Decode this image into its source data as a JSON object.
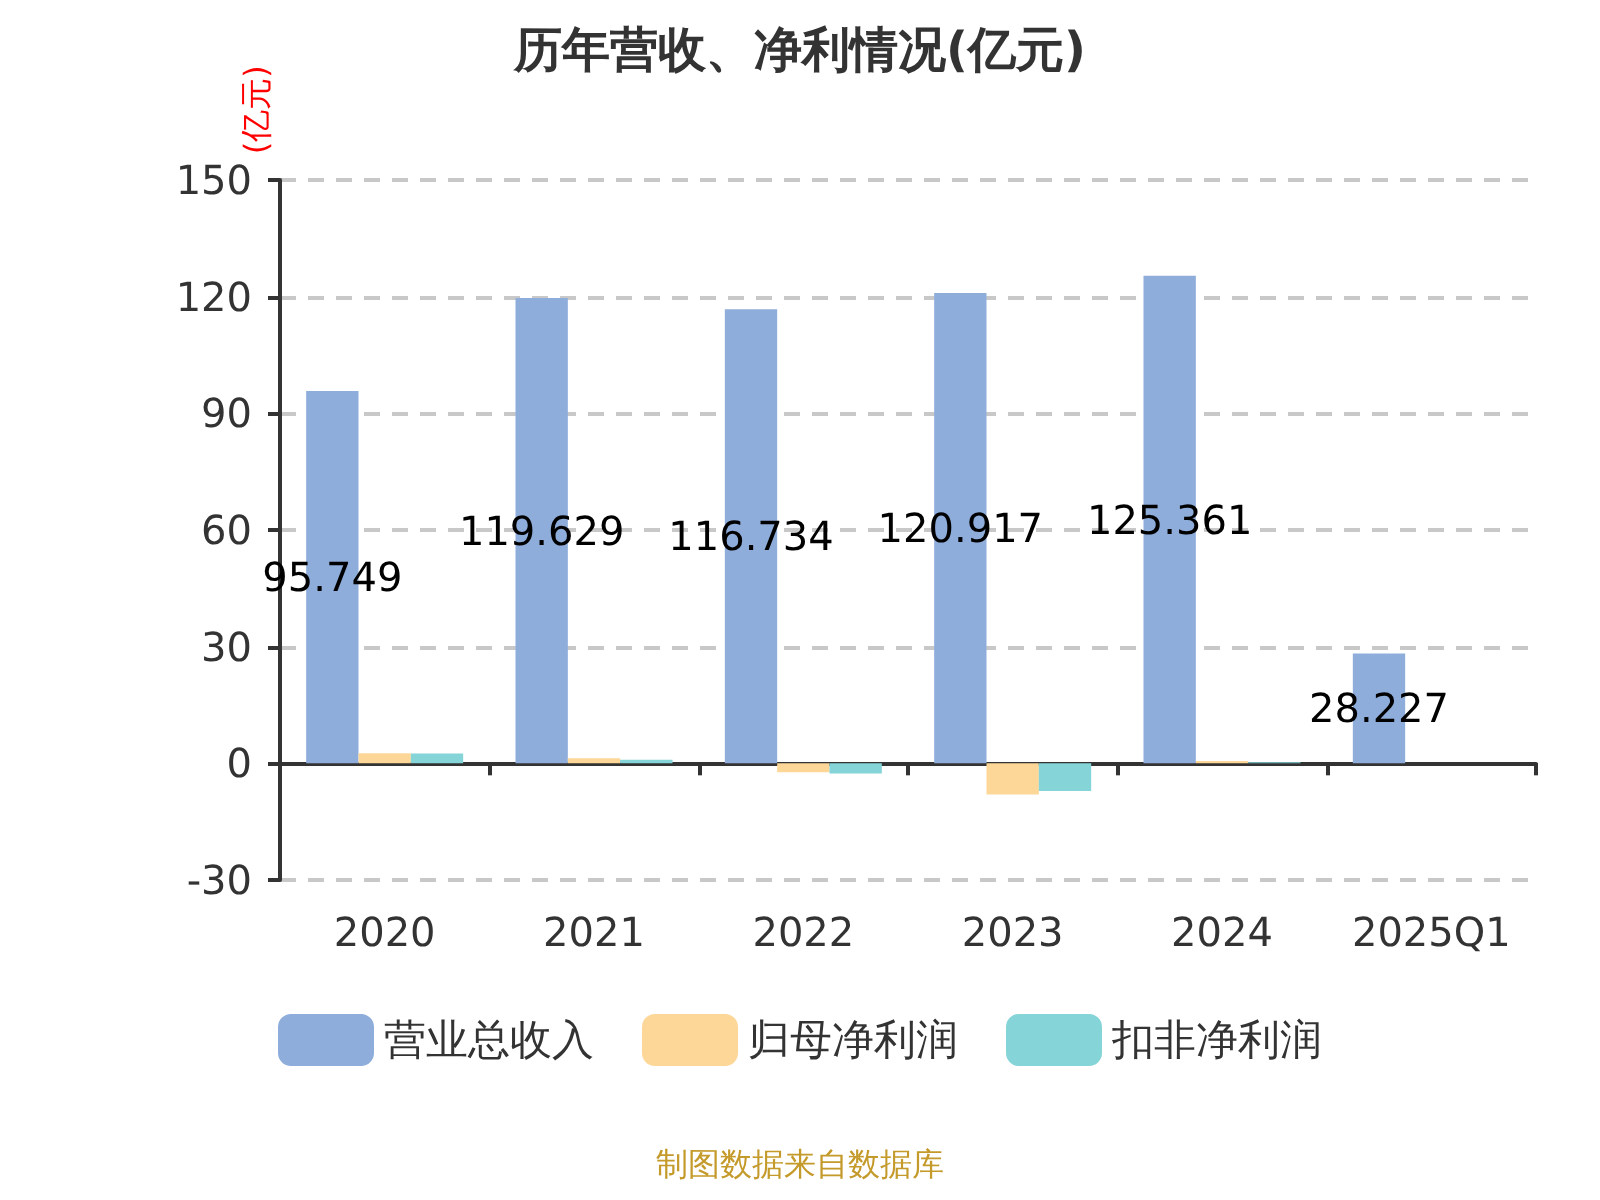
{
  "chart_data": {
    "type": "bar",
    "title": "历年营收、净利情况(亿元)",
    "ylabel": "(亿元)",
    "categories": [
      "2020",
      "2021",
      "2022",
      "2023",
      "2024",
      "2025Q1"
    ],
    "series": [
      {
        "name": "营业总收入",
        "color": "#8eaddb",
        "values": [
          95.749,
          119.629,
          116.734,
          120.917,
          125.361,
          28.227
        ],
        "value_labels": [
          "95.749",
          "119.629",
          "116.734",
          "120.917",
          "125.361",
          "28.227"
        ]
      },
      {
        "name": "归母净利润",
        "color": "#fdd797",
        "values": [
          2.6,
          1.3,
          -2.3,
          -8.0,
          0.6,
          null
        ]
      },
      {
        "name": "扣非净利润",
        "color": "#84d4d8",
        "values": [
          2.5,
          0.9,
          -2.6,
          -7.1,
          0.3,
          null
        ]
      }
    ],
    "ylim": [
      -30,
      150
    ],
    "yticks": [
      -30,
      0,
      30,
      60,
      90,
      120,
      150
    ],
    "grid": "y",
    "legend": "bottom",
    "annotations": [
      "制图数据来自数据库"
    ]
  }
}
